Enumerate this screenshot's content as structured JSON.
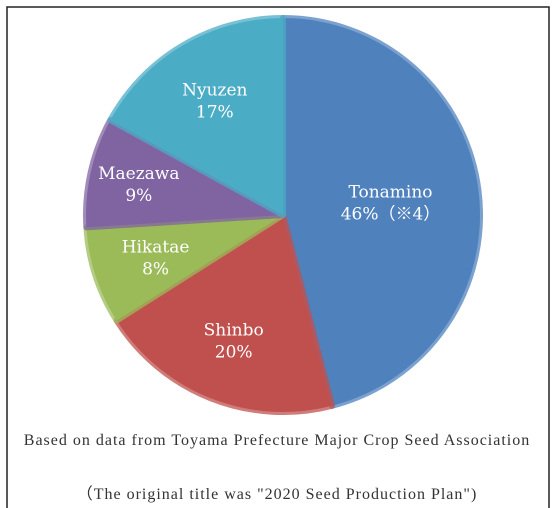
{
  "chart_data": {
    "type": "pie",
    "categories": [
      "Tonamino",
      "Shinbo",
      "Hikatae",
      "Maezawa",
      "Nyuzen"
    ],
    "values": [
      46,
      20,
      8,
      9,
      17
    ],
    "value_labels": [
      "46%（※4）",
      "20%",
      "8%",
      "9%",
      "17%"
    ],
    "colors": [
      "#4f81bd",
      "#c0504d",
      "#9bbb59",
      "#8064a2",
      "#4bacc6"
    ],
    "source": "Based on data from Toyama Prefecture Major Crop Seed Association",
    "note": "（The original title was \"2020 Seed Production Plan\")"
  }
}
